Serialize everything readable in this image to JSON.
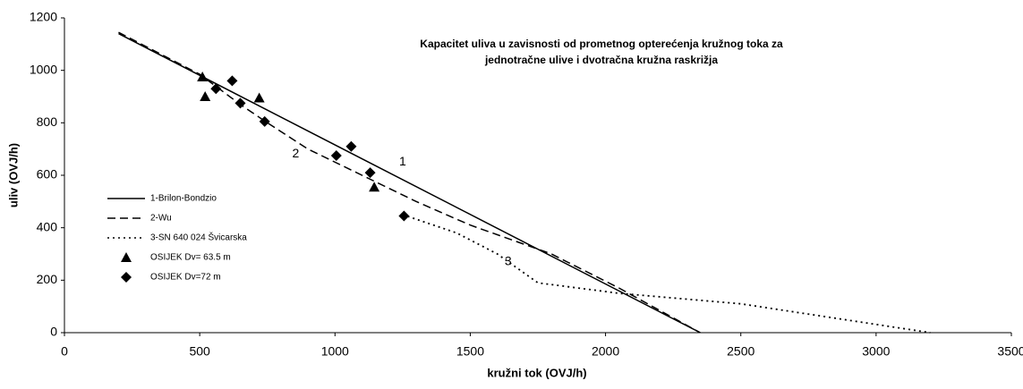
{
  "chart_data": {
    "type": "line",
    "title": [
      "Kapacitet uliva u zavisnosti od prometnog opterećenja kružnog toka za",
      "jednotračne ulive i dvotračna kružna raskrižja"
    ],
    "x_label": "kružni tok (OVJ/h)",
    "y_label": "uliv (OVJ/h)",
    "xlim": [
      0,
      3500
    ],
    "xticks": [
      0,
      500,
      1000,
      1500,
      2000,
      2500,
      3000,
      3500
    ],
    "ylim": [
      0,
      1200
    ],
    "yticks": [
      0,
      200,
      400,
      600,
      800,
      1000,
      1200
    ],
    "grid": false,
    "legend": "left",
    "series": [
      {
        "name": "1-Brilon-Bondzio",
        "type": "line",
        "dash": "solid",
        "color": "#000000",
        "x": [
          200,
          2350
        ],
        "values": [
          1140,
          0
        ]
      },
      {
        "name": "2-Wu",
        "type": "line",
        "dash": "dashed",
        "color": "#000000",
        "x": [
          200,
          500,
          650,
          750,
          900,
          1100,
          1300,
          1500,
          1800,
          2050,
          2350
        ],
        "values": [
          1145,
          985,
          870,
          800,
          700,
          600,
          500,
          410,
          300,
          170,
          0
        ]
      },
      {
        "name": "3-SN 640 024 Švicarska",
        "type": "line",
        "dash": "dotted",
        "color": "#000000",
        "x": [
          1250,
          1450,
          1600,
          1750,
          2050,
          2500,
          3200
        ],
        "values": [
          450,
          380,
          300,
          190,
          150,
          110,
          0
        ]
      },
      {
        "name": "OSIJEK Dv= 63.5 m",
        "type": "scatter",
        "marker": "triangle",
        "color": "#000000",
        "x": [
          510,
          520,
          720,
          1145
        ],
        "values": [
          975,
          900,
          895,
          555
        ]
      },
      {
        "name": "OSIJEK Dv=72 m",
        "type": "scatter",
        "marker": "diamond",
        "color": "#000000",
        "x": [
          560,
          620,
          650,
          740,
          1005,
          1060,
          1130,
          1255
        ],
        "values": [
          930,
          960,
          875,
          805,
          675,
          710,
          610,
          445
        ]
      }
    ],
    "annotations": [
      {
        "text": "1",
        "x": 1250,
        "y": 650
      },
      {
        "text": "2",
        "x": 855,
        "y": 680
      },
      {
        "text": "3",
        "x": 1640,
        "y": 270
      }
    ]
  }
}
